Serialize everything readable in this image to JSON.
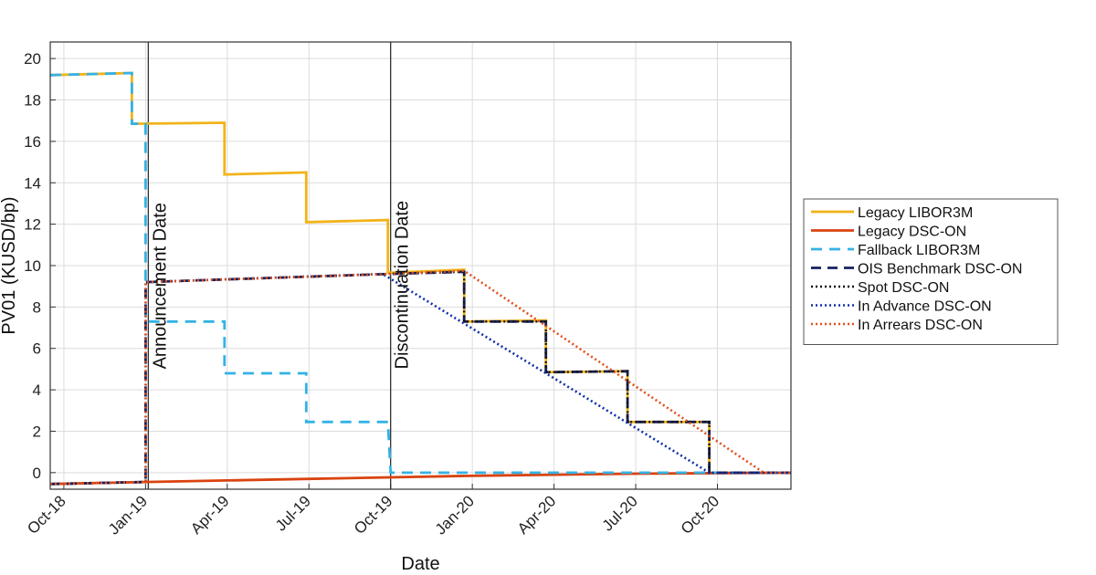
{
  "chart_data": {
    "type": "line",
    "title": "",
    "xlabel": "Date",
    "ylabel": "PV01 (KUSD/bp)",
    "xlim": [
      -0.5,
      26.7
    ],
    "ylim": [
      -0.8,
      20.8
    ],
    "grid": true,
    "legend_position": "right",
    "x_ticks": [
      {
        "x": 0,
        "label": "Oct-18"
      },
      {
        "x": 3,
        "label": "Jan-19"
      },
      {
        "x": 6,
        "label": "Apr-19"
      },
      {
        "x": 9,
        "label": "Jul-19"
      },
      {
        "x": 12,
        "label": "Oct-19"
      },
      {
        "x": 15,
        "label": "Jan-20"
      },
      {
        "x": 18,
        "label": "Apr-20"
      },
      {
        "x": 21,
        "label": "Jul-20"
      },
      {
        "x": 24,
        "label": "Oct-20"
      }
    ],
    "y_ticks": [
      0,
      2,
      4,
      6,
      8,
      10,
      12,
      14,
      16,
      18,
      20
    ],
    "events": [
      {
        "label": "Announcement Date",
        "x": 3.1
      },
      {
        "label": "Discontinuation Date",
        "x": 12.0
      }
    ],
    "series": [
      {
        "name": "Legacy LIBOR3M",
        "color": "#f2b31a",
        "dash": "solid",
        "width": 2.8,
        "points": [
          [
            -0.5,
            19.2
          ],
          [
            2.5,
            19.3
          ],
          [
            2.5,
            16.85
          ],
          [
            5.9,
            16.9
          ],
          [
            5.9,
            14.4
          ],
          [
            8.9,
            14.5
          ],
          [
            8.9,
            12.1
          ],
          [
            11.9,
            12.2
          ],
          [
            11.9,
            9.65
          ],
          [
            14.7,
            9.8
          ],
          [
            14.7,
            7.3
          ],
          [
            17.7,
            7.35
          ],
          [
            17.7,
            4.85
          ],
          [
            20.7,
            4.9
          ],
          [
            20.7,
            2.45
          ],
          [
            23.7,
            2.45
          ],
          [
            23.7,
            0
          ],
          [
            26.7,
            0
          ]
        ]
      },
      {
        "name": "Legacy DSC-ON",
        "color": "#d9430f",
        "dash": "solid",
        "width": 2.8,
        "points": [
          [
            -0.5,
            -0.55
          ],
          [
            3.0,
            -0.45
          ],
          [
            9.0,
            -0.3
          ],
          [
            15.0,
            -0.15
          ],
          [
            21.0,
            -0.05
          ],
          [
            26.7,
            0
          ]
        ]
      },
      {
        "name": "Fallback LIBOR3M",
        "color": "#33b2e5",
        "dash": "12,8",
        "width": 2.8,
        "points": [
          [
            -0.5,
            19.2
          ],
          [
            2.5,
            19.3
          ],
          [
            2.5,
            16.85
          ],
          [
            3.0,
            16.85
          ],
          [
            3.0,
            7.3
          ],
          [
            5.9,
            7.3
          ],
          [
            5.9,
            4.8
          ],
          [
            8.9,
            4.8
          ],
          [
            8.9,
            2.45
          ],
          [
            11.9,
            2.45
          ],
          [
            12.0,
            0
          ],
          [
            26.7,
            0
          ]
        ]
      },
      {
        "name": "OIS Benchmark DSC-ON",
        "color": "#16215e",
        "dash": "11,7",
        "width": 2.8,
        "points": [
          [
            -0.5,
            -0.55
          ],
          [
            3.0,
            -0.45
          ],
          [
            3.0,
            9.2
          ],
          [
            12.0,
            9.6
          ],
          [
            14.7,
            9.7
          ],
          [
            14.7,
            7.3
          ],
          [
            17.7,
            7.3
          ],
          [
            17.7,
            4.85
          ],
          [
            20.7,
            4.9
          ],
          [
            20.7,
            2.45
          ],
          [
            23.7,
            2.45
          ],
          [
            23.7,
            0
          ],
          [
            26.7,
            0
          ]
        ]
      },
      {
        "name": "Spot DSC-ON",
        "color": "#111111",
        "dash": "2,3",
        "width": 2.4,
        "points": [
          [
            -0.5,
            -0.55
          ],
          [
            3.0,
            -0.45
          ],
          [
            3.0,
            9.2
          ],
          [
            12.0,
            9.6
          ],
          [
            14.7,
            9.7
          ],
          [
            14.7,
            7.3
          ],
          [
            17.7,
            7.3
          ],
          [
            17.7,
            4.85
          ],
          [
            20.7,
            4.9
          ],
          [
            20.7,
            2.45
          ],
          [
            23.7,
            2.45
          ],
          [
            23.7,
            0
          ],
          [
            26.7,
            0
          ]
        ]
      },
      {
        "name": "In Advance DSC-ON",
        "color": "#1030a8",
        "dash": "2,3",
        "width": 2.6,
        "points": [
          [
            -0.5,
            -0.55
          ],
          [
            3.0,
            -0.45
          ],
          [
            3.0,
            9.2
          ],
          [
            11.7,
            9.6
          ],
          [
            23.7,
            0
          ],
          [
            26.7,
            0
          ]
        ]
      },
      {
        "name": "In Arrears DSC-ON",
        "color": "#e0501a",
        "dash": "2,3",
        "width": 2.6,
        "points": [
          [
            -0.5,
            -0.55
          ],
          [
            3.0,
            -0.45
          ],
          [
            3.0,
            9.2
          ],
          [
            12.0,
            9.6
          ],
          [
            14.7,
            9.75
          ],
          [
            25.7,
            0
          ],
          [
            26.7,
            0
          ]
        ]
      }
    ]
  }
}
